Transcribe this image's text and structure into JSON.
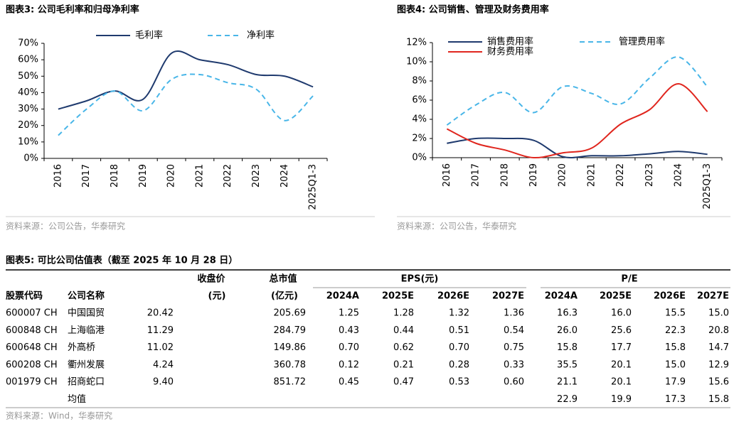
{
  "chart_data": [
    {
      "type": "line",
      "title": "图表3:  公司毛利率和归母净利率",
      "source": "资料来源：公司公告，华泰研究",
      "categories": [
        "2016",
        "2017",
        "2018",
        "2019",
        "2020",
        "2021",
        "2022",
        "2023",
        "2024",
        "2025Q1-3"
      ],
      "ylim": [
        0,
        70
      ],
      "yticks": [
        {
          "value": 0,
          "label": "0%"
        },
        {
          "value": 10,
          "label": "10%"
        },
        {
          "value": 20,
          "label": "20%"
        },
        {
          "value": 30,
          "label": "30%"
        },
        {
          "value": 40,
          "label": "40%"
        },
        {
          "value": 50,
          "label": "50%"
        },
        {
          "value": 60,
          "label": "60%"
        },
        {
          "value": 70,
          "label": "70%"
        }
      ],
      "series": [
        {
          "name": "毛利率",
          "color": "#1f3a6e",
          "dash": false,
          "values": [
            30,
            35,
            41,
            36,
            64,
            60,
            57,
            51,
            50,
            43.5
          ]
        },
        {
          "name": "净利率",
          "color": "#49b6e8",
          "dash": true,
          "values": [
            14,
            30,
            41,
            29,
            48,
            51,
            46,
            42,
            23,
            38
          ]
        }
      ]
    },
    {
      "type": "line",
      "title": "图表4:  公司销售、管理及财务费用率",
      "source": "资料来源：公司公告，华泰研究",
      "categories": [
        "2016",
        "2017",
        "2018",
        "2019",
        "2020",
        "2021",
        "2022",
        "2023",
        "2024",
        "2025Q1-3"
      ],
      "ylim": [
        0,
        12
      ],
      "yticks": [
        {
          "value": 0,
          "label": "0%"
        },
        {
          "value": 2,
          "label": "2%"
        },
        {
          "value": 4,
          "label": "4%"
        },
        {
          "value": 6,
          "label": "6%"
        },
        {
          "value": 8,
          "label": "8%"
        },
        {
          "value": 10,
          "label": "10%"
        },
        {
          "value": 12,
          "label": "12%"
        }
      ],
      "series": [
        {
          "name": "销售费用率",
          "color": "#1f3a6e",
          "dash": false,
          "values": [
            1.5,
            2.0,
            2.0,
            1.8,
            0.1,
            0.2,
            0.2,
            0.4,
            0.65,
            0.35
          ]
        },
        {
          "name": "管理费用率",
          "color": "#49b6e8",
          "dash": true,
          "values": [
            3.4,
            5.5,
            6.8,
            4.7,
            7.4,
            6.7,
            5.6,
            8.3,
            10.5,
            7.4
          ]
        },
        {
          "name": "财务费用率",
          "color": "#e0261e",
          "dash": false,
          "values": [
            3.0,
            1.5,
            0.8,
            0.0,
            0.5,
            1.0,
            3.5,
            5.0,
            7.7,
            4.8
          ]
        }
      ]
    }
  ],
  "table": {
    "title": "图表5:  可比公司估值表（截至 2025 年 10 月 28 日）",
    "header_top": [
      "收盘价",
      "总市值",
      "EPS(元)",
      "P/E"
    ],
    "header": [
      "股票代码",
      "公司名称",
      "(元)",
      "(亿元)",
      "2024A",
      "2025E",
      "2026E",
      "2027E",
      "2024A",
      "2025E",
      "2026E",
      "2027E"
    ],
    "rows": [
      [
        "600007 CH",
        "中国国贸",
        "20.42",
        "205.69",
        "1.25",
        "1.28",
        "1.32",
        "1.36",
        "16.3",
        "16.0",
        "15.5",
        "15.0"
      ],
      [
        "600848 CH",
        "上海临港",
        "11.29",
        "284.79",
        "0.43",
        "0.44",
        "0.51",
        "0.54",
        "26.0",
        "25.6",
        "22.3",
        "20.8"
      ],
      [
        "600648 CH",
        "外高桥",
        "11.02",
        "149.86",
        "0.70",
        "0.62",
        "0.70",
        "0.75",
        "15.8",
        "17.7",
        "15.8",
        "14.7"
      ],
      [
        "600208 CH",
        "衢州发展",
        "4.24",
        "360.78",
        "0.12",
        "0.21",
        "0.28",
        "0.33",
        "35.5",
        "20.1",
        "15.0",
        "12.9"
      ],
      [
        "001979 CH",
        "招商蛇口",
        "9.40",
        "851.72",
        "0.45",
        "0.47",
        "0.53",
        "0.60",
        "21.1",
        "20.1",
        "17.9",
        "15.6"
      ]
    ],
    "mean": {
      "label": "均值",
      "pe": [
        "22.9",
        "19.9",
        "17.3",
        "15.8"
      ]
    },
    "source": "资料来源：Wind，华泰研究"
  }
}
